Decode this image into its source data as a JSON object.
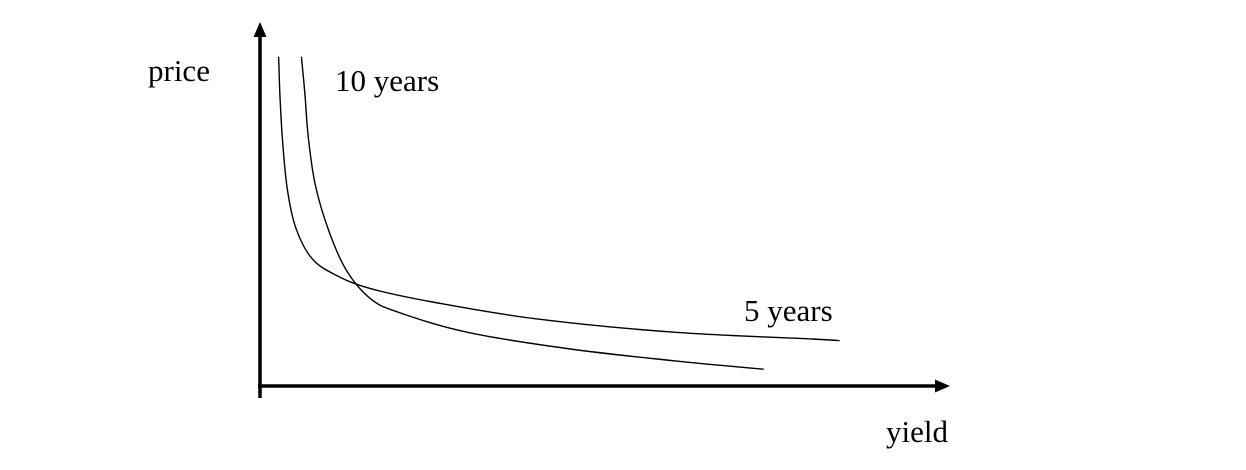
{
  "chart_data": {
    "type": "line",
    "title": "",
    "xlabel": "yield",
    "ylabel": "price",
    "grid": false,
    "legend": "none",
    "axis_ticks": false,
    "colors": {
      "background": "#ffffff",
      "axes": "#000000",
      "curves": "#000000"
    },
    "series": [
      {
        "name": "10 years",
        "label_position": "top",
        "points": [
          [
            0.06,
            0.98
          ],
          [
            0.065,
            0.87
          ],
          [
            0.07,
            0.74
          ],
          [
            0.08,
            0.6
          ],
          [
            0.1,
            0.46
          ],
          [
            0.125,
            0.345
          ],
          [
            0.16,
            0.26
          ],
          [
            0.2,
            0.22
          ],
          [
            0.3,
            0.16
          ],
          [
            0.45,
            0.11
          ],
          [
            0.6,
            0.075
          ],
          [
            0.73,
            0.05
          ]
        ]
      },
      {
        "name": "5 years",
        "label_position": "right",
        "points": [
          [
            0.027,
            0.98
          ],
          [
            0.029,
            0.86
          ],
          [
            0.033,
            0.72
          ],
          [
            0.04,
            0.58
          ],
          [
            0.052,
            0.47
          ],
          [
            0.075,
            0.38
          ],
          [
            0.11,
            0.33
          ],
          [
            0.16,
            0.29
          ],
          [
            0.25,
            0.25
          ],
          [
            0.4,
            0.2
          ],
          [
            0.6,
            0.16
          ],
          [
            0.8,
            0.14
          ],
          [
            0.84,
            0.135
          ]
        ]
      }
    ]
  }
}
